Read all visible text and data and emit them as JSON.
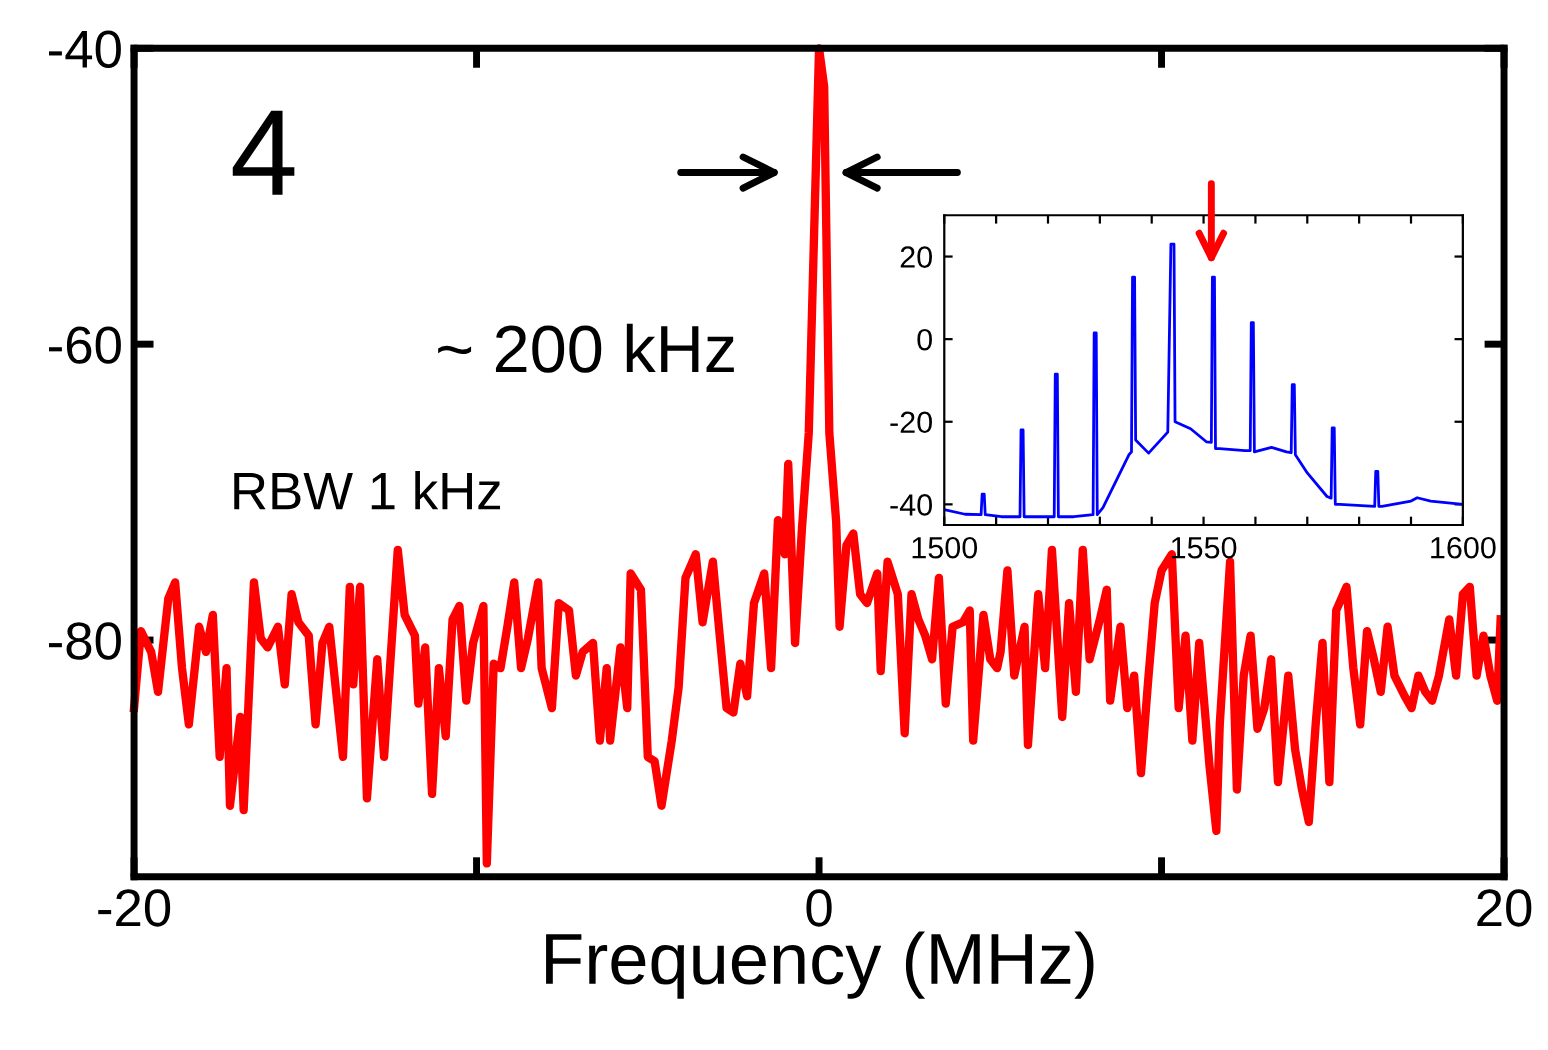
{
  "chart_data": [
    {
      "type": "line",
      "xlabel": "Frequency (MHz)",
      "annotations": [
        "4",
        "~ 200 kHz",
        "RBW 1 kHz"
      ],
      "xlim": [
        -20,
        20
      ],
      "xticks": [
        -20,
        {
          "value": -10,
          "label": null
        },
        0,
        {
          "value": 10,
          "label": null
        },
        20
      ],
      "ylim": [
        -96,
        -40
      ],
      "yticks": [
        -80,
        -60,
        -40
      ],
      "grid": false,
      "legend": false,
      "line_style": "solid",
      "series": [
        {
          "color": "#ff0000",
          "x": [
            -20.0,
            -19.8,
            -19.5,
            -19.3,
            -19.0,
            -18.8,
            -18.6,
            -18.4,
            -18.1,
            -17.9,
            -17.7,
            -17.5,
            -17.3,
            -17.2,
            -16.9,
            -16.8,
            -16.5,
            -16.3,
            -16.1,
            -15.8,
            -15.6,
            -15.4,
            -15.2,
            -14.9,
            -14.7,
            -14.5,
            -14.3,
            -14.1,
            -13.9,
            -13.7,
            -13.6,
            -13.4,
            -13.2,
            -12.9,
            -12.7,
            -12.3,
            -12.1,
            -11.8,
            -11.7,
            -11.5,
            -11.3,
            -11.1,
            -10.9,
            -10.7,
            -10.5,
            -10.3,
            -10.1,
            -9.8,
            -9.7,
            -9.5,
            -9.3,
            -9.1,
            -8.9,
            -8.7,
            -8.5,
            -8.2,
            -8.1,
            -7.8,
            -7.6,
            -7.3,
            -7.1,
            -6.9,
            -6.6,
            -6.4,
            -6.2,
            -6.1,
            -5.8,
            -5.6,
            -5.5,
            -5.2,
            -5.0,
            -4.8,
            -4.6,
            -4.3,
            -4.1,
            -3.9,
            -3.6,
            -3.4,
            -3.1,
            -2.9,
            -2.7,
            -2.5,
            -2.3,
            -2.1,
            -1.9,
            -1.6,
            -1.4,
            -1.2,
            -1.0,
            -0.9,
            -0.7,
            -0.5,
            -0.3,
            0.0,
            0.15,
            0.3,
            0.5,
            0.6,
            0.8,
            1.0,
            1.2,
            1.4,
            1.7,
            1.8,
            2.0,
            2.3,
            2.5,
            2.7,
            2.9,
            3.1,
            3.3,
            3.5,
            3.7,
            3.9,
            4.2,
            4.4,
            4.5,
            4.8,
            5.0,
            5.2,
            5.3,
            5.5,
            5.7,
            6.0,
            6.1,
            6.4,
            6.6,
            6.8,
            7.1,
            7.3,
            7.5,
            7.7,
            7.9,
            8.2,
            8.4,
            8.5,
            8.8,
            9.0,
            9.2,
            9.4,
            9.6,
            9.8,
            10.0,
            10.3,
            10.5,
            10.7,
            10.9,
            11.1,
            11.4,
            11.6,
            11.7,
            12.0,
            12.2,
            12.4,
            12.6,
            12.8,
            13.0,
            13.2,
            13.4,
            13.7,
            13.9,
            14.1,
            14.3,
            14.5,
            14.7,
            14.9,
            15.1,
            15.4,
            15.6,
            15.8,
            16.0,
            16.2,
            16.4,
            16.6,
            16.8,
            17.1,
            17.3,
            17.5,
            17.7,
            17.9,
            18.1,
            18.4,
            18.6,
            18.8,
            19.0,
            19.2,
            19.4,
            19.6,
            19.8,
            19.9
          ],
          "values": [
            -84.6,
            -79.4,
            -80.8,
            -83.5,
            -77.2,
            -76.1,
            -81.9,
            -85.7,
            -79.1,
            -80.8,
            -78.3,
            -87.9,
            -81.9,
            -91.2,
            -85.2,
            -91.5,
            -76.1,
            -79.9,
            -80.5,
            -79.1,
            -83.0,
            -76.9,
            -78.8,
            -79.7,
            -85.7,
            -80.2,
            -79.1,
            -83.5,
            -87.9,
            -76.4,
            -83.0,
            -76.4,
            -90.7,
            -81.3,
            -87.9,
            -73.9,
            -78.3,
            -79.7,
            -84.3,
            -80.5,
            -90.4,
            -81.9,
            -86.5,
            -78.6,
            -77.7,
            -84.1,
            -80.2,
            -77.7,
            -95.1,
            -81.6,
            -81.9,
            -79.1,
            -76.1,
            -81.9,
            -79.9,
            -76.1,
            -81.9,
            -84.6,
            -77.5,
            -78.0,
            -82.4,
            -80.8,
            -80.2,
            -86.8,
            -81.9,
            -86.8,
            -80.5,
            -84.6,
            -75.5,
            -76.6,
            -87.9,
            -88.2,
            -91.2,
            -86.8,
            -83.2,
            -75.8,
            -74.2,
            -78.8,
            -74.7,
            -79.7,
            -84.6,
            -84.9,
            -81.6,
            -83.8,
            -77.5,
            -75.5,
            -81.9,
            -71.9,
            -74.2,
            -68.1,
            -80.2,
            -72.5,
            -66.0,
            -40.0,
            -42.6,
            -66.0,
            -72.0,
            -79.1,
            -73.6,
            -72.8,
            -76.9,
            -77.5,
            -75.5,
            -82.1,
            -74.7,
            -76.9,
            -86.3,
            -76.9,
            -78.6,
            -79.7,
            -81.3,
            -75.8,
            -84.3,
            -79.1,
            -78.8,
            -78.0,
            -86.8,
            -78.3,
            -81.3,
            -81.9,
            -80.8,
            -75.3,
            -82.4,
            -79.1,
            -87.1,
            -76.9,
            -81.9,
            -73.9,
            -85.2,
            -77.5,
            -83.5,
            -73.9,
            -81.3,
            -78.6,
            -76.6,
            -84.1,
            -79.1,
            -84.6,
            -82.4,
            -89.0,
            -83.0,
            -77.5,
            -75.3,
            -74.2,
            -84.6,
            -79.7,
            -86.8,
            -80.2,
            -88.5,
            -92.9,
            -85.7,
            -74.7,
            -90.1,
            -82.4,
            -79.7,
            -86.0,
            -84.6,
            -81.3,
            -89.6,
            -82.4,
            -87.4,
            -90.1,
            -92.3,
            -85.7,
            -80.2,
            -89.6,
            -78.0,
            -76.4,
            -81.9,
            -85.7,
            -79.4,
            -81.3,
            -83.5,
            -79.1,
            -82.4,
            -83.8,
            -84.6,
            -82.4,
            -83.5,
            -84.1,
            -82.4,
            -78.6,
            -82.4,
            -76.9,
            -76.4,
            -82.4,
            -79.7,
            -82.4,
            -84.1,
            -78.6
          ]
        }
      ]
    },
    {
      "type": "line",
      "xlim": [
        1500,
        1600
      ],
      "xticks": [
        1500,
        {
          "value": 1510,
          "label": null
        },
        {
          "value": 1520,
          "label": null
        },
        {
          "value": 1530,
          "label": null
        },
        {
          "value": 1540,
          "label": null
        },
        1550,
        {
          "value": 1560,
          "label": null
        },
        {
          "value": 1570,
          "label": null
        },
        {
          "value": 1580,
          "label": null
        },
        {
          "value": 1590,
          "label": null
        },
        1600
      ],
      "ylim": [
        -45,
        30
      ],
      "yticks": [
        -40,
        -20,
        0,
        20
      ],
      "grid": false,
      "legend": false,
      "line_style": "solid",
      "series": [
        {
          "color": "#0000ff",
          "x": [
            1500,
            1504,
            1507.1,
            1507.3,
            1507.7,
            1507.9,
            1511,
            1514.6,
            1514.8,
            1515.2,
            1515.4,
            1518,
            1521.2,
            1521.4,
            1521.8,
            1522,
            1525,
            1528.7,
            1528.9,
            1529.3,
            1529.5,
            1530.6,
            1535.6,
            1536.1,
            1536.3,
            1536.7,
            1536.9,
            1539.4,
            1543.1,
            1543.7,
            1544.3,
            1544.5,
            1547.5,
            1550.6,
            1551.5,
            1551.7,
            1552.1,
            1552.3,
            1553.1,
            1558,
            1559,
            1559.2,
            1559.6,
            1559.8,
            1563.1,
            1566,
            1566.9,
            1567.1,
            1567.5,
            1567.7,
            1570,
            1573.8,
            1574.6,
            1574.8,
            1575.2,
            1575.4,
            1576.3,
            1583.0,
            1583.2,
            1583.6,
            1583.8,
            1584.4,
            1590,
            1591.2,
            1593.8,
            1600
          ],
          "values": [
            -41.3,
            -42.4,
            -42.5,
            -37.5,
            -37.5,
            -42.5,
            -43,
            -43,
            -22,
            -22,
            -43,
            -43,
            -43,
            -8.5,
            -8.5,
            -43,
            -43,
            -42.5,
            1.5,
            1.5,
            -42.5,
            -40.8,
            -28,
            -27.3,
            15,
            15,
            -24.4,
            -27.6,
            -22.5,
            23,
            23,
            -20,
            -21.7,
            -24.9,
            -25,
            15,
            15,
            -26.5,
            -26.5,
            -27,
            -27,
            4,
            4,
            -27.3,
            -26.2,
            -27.3,
            -27.5,
            -11,
            -11,
            -28,
            -32.4,
            -38.1,
            -38.5,
            -21.5,
            -21.5,
            -40,
            -40,
            -40.5,
            -32,
            -32,
            -40.5,
            -40.5,
            -39.2,
            -38.4,
            -39.2,
            -40.0
          ]
        }
      ]
    }
  ]
}
